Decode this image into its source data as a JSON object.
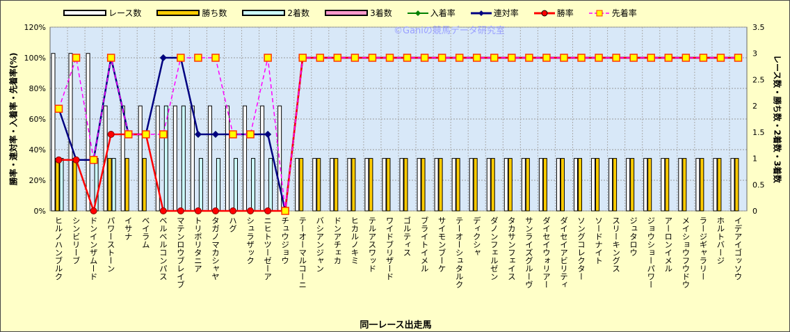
{
  "chart_data": {
    "type": "bar+line",
    "watermark": "©Ganiの競馬データ研究室",
    "xlabel": "同一レース出走馬",
    "ylabel_left": "勝率・連対率・入着率・先着率(%)",
    "ylabel_right": "レース数・勝ち数・2着数・3着数",
    "ylim_left": [
      0,
      120
    ],
    "ylim_right": [
      0,
      3.5
    ],
    "yticks_left": [
      "0%",
      "20%",
      "40%",
      "60%",
      "80%",
      "100%",
      "120%"
    ],
    "yticks_right": [
      "0",
      "0.5",
      "1",
      "1.5",
      "2",
      "2.5",
      "3",
      "3.5"
    ],
    "legend": [
      "レース数",
      "勝ち数",
      "2着数",
      "3着数",
      "入着率",
      "連対率",
      "勝率",
      "先着率"
    ],
    "categories": [
      "ヒルノハンブルク",
      "シンビリーブ",
      "ドンインザムード",
      "パワーストーン",
      "イサナ",
      "ベイラム",
      "ベルベルコンパス",
      "マテンロウブレイブ",
      "トリポリタニア",
      "タガノマカシャヤ",
      "ハグ",
      "シュラザック",
      "ニヒトツーゼーア",
      "チュウジョウ",
      "テーオーマルコーニ",
      "バシアンジャン",
      "ドンアチェカ",
      "ヒカルノキミ",
      "テルアスワッド",
      "ワイドブリザード",
      "ゴルティス",
      "ブライトイメル",
      "サイモンブーケ",
      "テーオーシュタルク",
      "ディクシャ",
      "ダノンフェルゼン",
      "タカサンフェイス",
      "サンライズグルーヴ",
      "ダイセイウォリアー",
      "ダイセイアビリティ",
      "ソングコレクター",
      "ソードナイト",
      "スリーキングス",
      "ジュタロウ",
      "ジョウショーパワー",
      "アーロンイメル",
      "メイショウフウドウ",
      "ラージギャラリー",
      "ホルトバージ",
      "イデアイゴッソウ"
    ],
    "bars": [
      {
        "name": "レース数",
        "color": "#ffffff",
        "values": [
          3,
          3,
          3,
          2,
          2,
          2,
          2,
          2,
          2,
          2,
          2,
          2,
          2,
          2,
          1,
          1,
          1,
          1,
          1,
          1,
          1,
          1,
          1,
          1,
          1,
          1,
          1,
          1,
          1,
          1,
          1,
          1,
          1,
          1,
          1,
          1,
          1,
          1,
          1,
          1
        ]
      },
      {
        "name": "勝ち数",
        "color": "#ffcc00",
        "values": [
          1,
          1,
          0,
          1,
          1,
          1,
          0,
          0,
          0,
          0,
          0,
          0,
          0,
          0,
          1,
          1,
          1,
          1,
          1,
          1,
          1,
          1,
          1,
          1,
          1,
          1,
          1,
          1,
          1,
          1,
          1,
          1,
          1,
          1,
          1,
          1,
          1,
          1,
          1,
          1
        ]
      },
      {
        "name": "2着数",
        "color": "#ccffff",
        "values": [
          1,
          0,
          1,
          1,
          0,
          0,
          2,
          2,
          1,
          1,
          1,
          1,
          1,
          0,
          0,
          0,
          0,
          0,
          0,
          0,
          0,
          0,
          0,
          0,
          0,
          0,
          0,
          0,
          0,
          0,
          0,
          0,
          0,
          0,
          0,
          0,
          0,
          0,
          0,
          0
        ]
      },
      {
        "name": "3着数",
        "color": "#ff99cc",
        "values": [
          0,
          0,
          0,
          0,
          0,
          0,
          0,
          0,
          0,
          0,
          0,
          0,
          0,
          0,
          0,
          0,
          0,
          0,
          0,
          0,
          0,
          0,
          0,
          0,
          0,
          0,
          0,
          0,
          0,
          0,
          0,
          0,
          0,
          0,
          0,
          0,
          0,
          0,
          0,
          0
        ]
      }
    ],
    "lines": [
      {
        "name": "入着率",
        "color": "#008000",
        "values": [
          66.7,
          33.3,
          33.3,
          100,
          50,
          50,
          100,
          100,
          50,
          50,
          50,
          50,
          50,
          0,
          100,
          100,
          100,
          100,
          100,
          100,
          100,
          100,
          100,
          100,
          100,
          100,
          100,
          100,
          100,
          100,
          100,
          100,
          100,
          100,
          100,
          100,
          100,
          100,
          100,
          100
        ]
      },
      {
        "name": "連対率",
        "color": "#000080",
        "values": [
          66.7,
          33.3,
          33.3,
          100,
          50,
          50,
          100,
          100,
          50,
          50,
          50,
          50,
          50,
          0,
          100,
          100,
          100,
          100,
          100,
          100,
          100,
          100,
          100,
          100,
          100,
          100,
          100,
          100,
          100,
          100,
          100,
          100,
          100,
          100,
          100,
          100,
          100,
          100,
          100,
          100
        ]
      },
      {
        "name": "勝率",
        "color": "#ff0000",
        "values": [
          33.3,
          33.3,
          0,
          50,
          50,
          50,
          0,
          0,
          0,
          0,
          0,
          0,
          0,
          0,
          100,
          100,
          100,
          100,
          100,
          100,
          100,
          100,
          100,
          100,
          100,
          100,
          100,
          100,
          100,
          100,
          100,
          100,
          100,
          100,
          100,
          100,
          100,
          100,
          100,
          100
        ]
      },
      {
        "name": "先着率",
        "color": "#ff00ff",
        "values": [
          66.7,
          100,
          33.3,
          100,
          50,
          50,
          50,
          100,
          100,
          100,
          50,
          50,
          100,
          0,
          100,
          100,
          100,
          100,
          100,
          100,
          100,
          100,
          100,
          100,
          100,
          100,
          100,
          100,
          100,
          100,
          100,
          100,
          100,
          100,
          100,
          100,
          100,
          100,
          100,
          100
        ]
      }
    ]
  }
}
